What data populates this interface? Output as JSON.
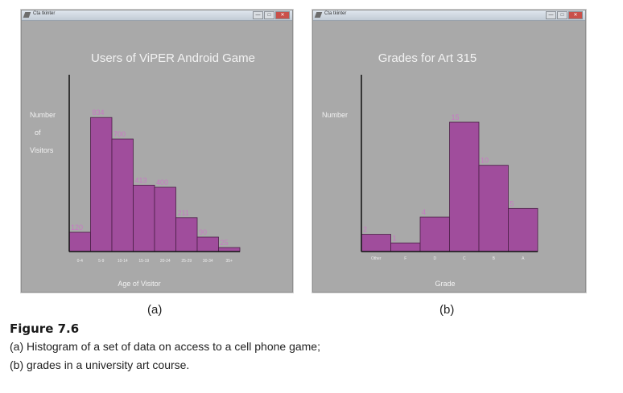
{
  "windows": [
    {
      "title": "Cta tkinter",
      "controls": [
        "—",
        "□",
        "✕"
      ]
    },
    {
      "title": "Cta tkinter",
      "controls": [
        "—",
        "□",
        "✕"
      ]
    }
  ],
  "chart_data": [
    {
      "type": "bar",
      "title": "Users of ViPER Android Game",
      "ylabel_lines": [
        "Number",
        "of",
        "Visitors"
      ],
      "xlabel": "Age of Visitor",
      "categories": [
        "0-4",
        "5-9",
        "10-14",
        "15-19",
        "20-24",
        "25-29",
        "30-34",
        "35+"
      ],
      "values": [
        120,
        834,
        700,
        413,
        400,
        211,
        90,
        25
      ],
      "ylim": [
        0,
        1100
      ],
      "bar_color": "#a04d9c",
      "label_color": "#c878c4",
      "axis_color": "#111111",
      "grid": false
    },
    {
      "type": "bar",
      "title": "Grades for Art 315",
      "ylabel_lines": [
        "Number"
      ],
      "xlabel": "Grade",
      "categories": [
        "Other",
        "F",
        "D",
        "C",
        "B",
        "A"
      ],
      "values": [
        2,
        1,
        4,
        15,
        10,
        5
      ],
      "ylim": [
        0,
        20.5
      ],
      "bar_color": "#a04d9c",
      "label_color": "#c878c4",
      "axis_color": "#111111",
      "grid": false
    }
  ],
  "subfigure_labels": [
    "(a)",
    "(b)"
  ],
  "figure": {
    "title": "Figure 7.6",
    "caption_lines": [
      "(a) Histogram of a set of data on access to a cell phone game;",
      "(b) grades in a university art course."
    ]
  }
}
